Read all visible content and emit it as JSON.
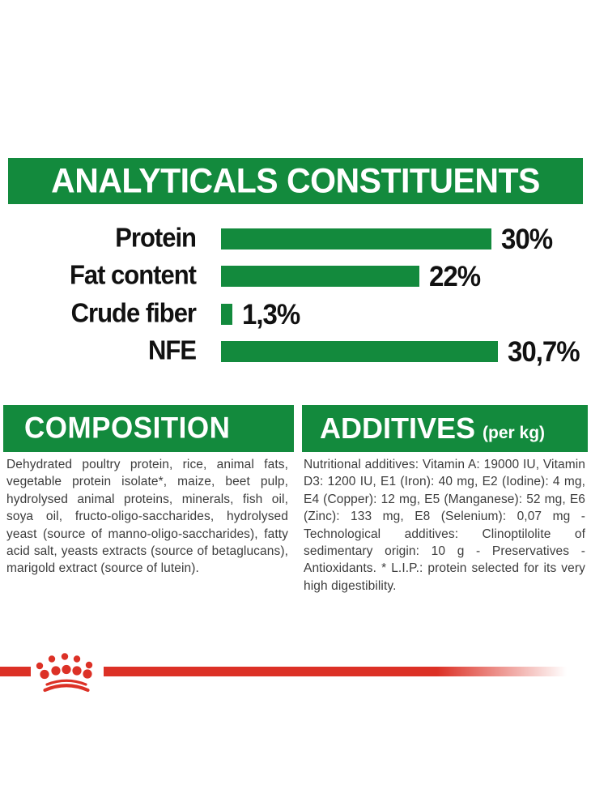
{
  "colors": {
    "green": "#138A3D",
    "red": "#DC3126",
    "body_text": "#3c3c3c",
    "label_text": "#111111",
    "background": "#ffffff"
  },
  "header": {
    "title": "ANALYTICALS CONSTITUENTS"
  },
  "chart_data": {
    "type": "bar",
    "orientation": "horizontal",
    "title": "ANALYTICALS CONSTITUENTS",
    "categories": [
      "Protein",
      "Fat content",
      "Crude fiber",
      "NFE"
    ],
    "values": [
      30,
      22,
      1.3,
      30.7
    ],
    "value_labels": [
      "30%",
      "22%",
      "1,3%",
      "30,7%"
    ],
    "unit": "%",
    "bar_color": "#138A3D",
    "xlim": [
      0,
      32
    ],
    "grid": false,
    "legend": false
  },
  "composition": {
    "heading": "COMPOSITION",
    "body": "Dehydrated poultry protein, rice, animal fats, vegetable protein isolate*, maize, beet pulp, hydrolysed animal proteins, minerals, fish oil, soya oil, fructo-oligo-saccharides, hydrolysed yeast (source of manno-oligo-saccharides), fatty acid salt, yeasts extracts (source of betaglucans), marigold extract (source of lutein)."
  },
  "additives": {
    "heading": "ADDITIVES",
    "heading_suffix": "(per kg)",
    "body": "Nutritional additives: Vitamin A: 19000 IU, Vitamin D3: 1200 IU, E1 (Iron): 40 mg, E2 (Iodine): 4 mg, E4 (Copper): 12 mg, E5 (Manganese): 52 mg, E6 (Zinc): 133 mg, E8 (Selenium): 0,07 mg - Technological additives: Clinoptilolite of sedimentary origin: 10 g - Preservatives - Antioxidants. * L.I.P.: protein selected for its very high digestibility."
  },
  "footer": {
    "logo_name": "royal-canin-crown"
  }
}
